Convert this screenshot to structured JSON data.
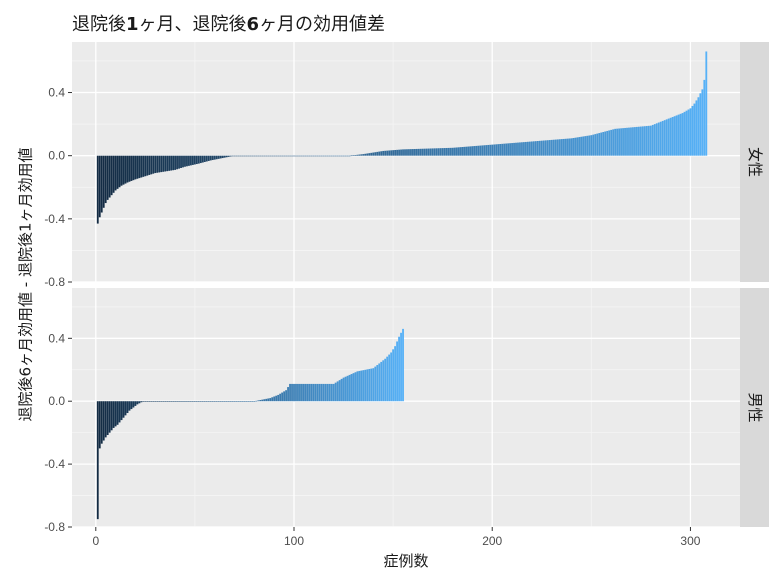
{
  "chart_data": {
    "type": "bar",
    "title_segments": [
      {
        "text": "退院後",
        "bold": false
      },
      {
        "text": "1",
        "bold": true
      },
      {
        "text": "ヶ月、退院後",
        "bold": false
      },
      {
        "text": "6",
        "bold": true
      },
      {
        "text": "ヶ月の効用値差",
        "bold": false
      }
    ],
    "xlabel": "症例数",
    "ylabel": "退院後6ヶ月効用値 - 退院後1ヶ月効用値",
    "xlim": [
      -12,
      325
    ],
    "ylim": [
      -0.8,
      0.72
    ],
    "x_ticks": [
      0,
      100,
      200,
      300
    ],
    "y_ticks": [
      -0.8,
      -0.4,
      0.0,
      0.4
    ],
    "y_tick_labels": [
      "-0.8",
      "-0.4",
      "0.0",
      "0.4"
    ],
    "color_low": "#132B43",
    "color_high": "#56B1F7",
    "panel_bg": "#EBEBEB",
    "strip_bg": "#D9D9D9",
    "grid": true,
    "facets": [
      {
        "label": "女性",
        "n": 308,
        "anchors": [
          [
            1,
            -0.43
          ],
          [
            2,
            -0.39
          ],
          [
            3,
            -0.36
          ],
          [
            4,
            -0.33
          ],
          [
            5,
            -0.3
          ],
          [
            6,
            -0.28
          ],
          [
            8,
            -0.25
          ],
          [
            10,
            -0.22
          ],
          [
            13,
            -0.19
          ],
          [
            16,
            -0.17
          ],
          [
            20,
            -0.15
          ],
          [
            25,
            -0.13
          ],
          [
            30,
            -0.11
          ],
          [
            40,
            -0.09
          ],
          [
            45,
            -0.07
          ],
          [
            52,
            -0.05
          ],
          [
            58,
            -0.03
          ],
          [
            62,
            -0.02
          ],
          [
            66,
            -0.01
          ],
          [
            70,
            0.0
          ],
          [
            128,
            0.0
          ],
          [
            135,
            0.01
          ],
          [
            140,
            0.02
          ],
          [
            145,
            0.03
          ],
          [
            155,
            0.04
          ],
          [
            180,
            0.05
          ],
          [
            200,
            0.07
          ],
          [
            220,
            0.09
          ],
          [
            240,
            0.11
          ],
          [
            250,
            0.13
          ],
          [
            256,
            0.15
          ],
          [
            262,
            0.17
          ],
          [
            280,
            0.19
          ],
          [
            284,
            0.21
          ],
          [
            288,
            0.23
          ],
          [
            292,
            0.25
          ],
          [
            296,
            0.27
          ],
          [
            300,
            0.3
          ],
          [
            302,
            0.33
          ],
          [
            304,
            0.37
          ],
          [
            306,
            0.42
          ],
          [
            307,
            0.48
          ],
          [
            308,
            0.66
          ]
        ]
      },
      {
        "label": "男性",
        "n": 155,
        "anchors": [
          [
            1,
            -0.75
          ],
          [
            2,
            -0.3
          ],
          [
            3,
            -0.27
          ],
          [
            5,
            -0.23
          ],
          [
            7,
            -0.2
          ],
          [
            9,
            -0.17
          ],
          [
            11,
            -0.15
          ],
          [
            13,
            -0.12
          ],
          [
            15,
            -0.09
          ],
          [
            17,
            -0.06
          ],
          [
            19,
            -0.04
          ],
          [
            21,
            -0.02
          ],
          [
            24,
            0.0
          ],
          [
            80,
            0.0
          ],
          [
            84,
            0.01
          ],
          [
            88,
            0.02
          ],
          [
            92,
            0.04
          ],
          [
            96,
            0.07
          ],
          [
            98,
            0.11
          ],
          [
            120,
            0.11
          ],
          [
            125,
            0.15
          ],
          [
            132,
            0.19
          ],
          [
            140,
            0.21
          ],
          [
            143,
            0.24
          ],
          [
            146,
            0.27
          ],
          [
            149,
            0.31
          ],
          [
            151,
            0.35
          ],
          [
            153,
            0.41
          ],
          [
            155,
            0.46
          ]
        ]
      }
    ]
  }
}
